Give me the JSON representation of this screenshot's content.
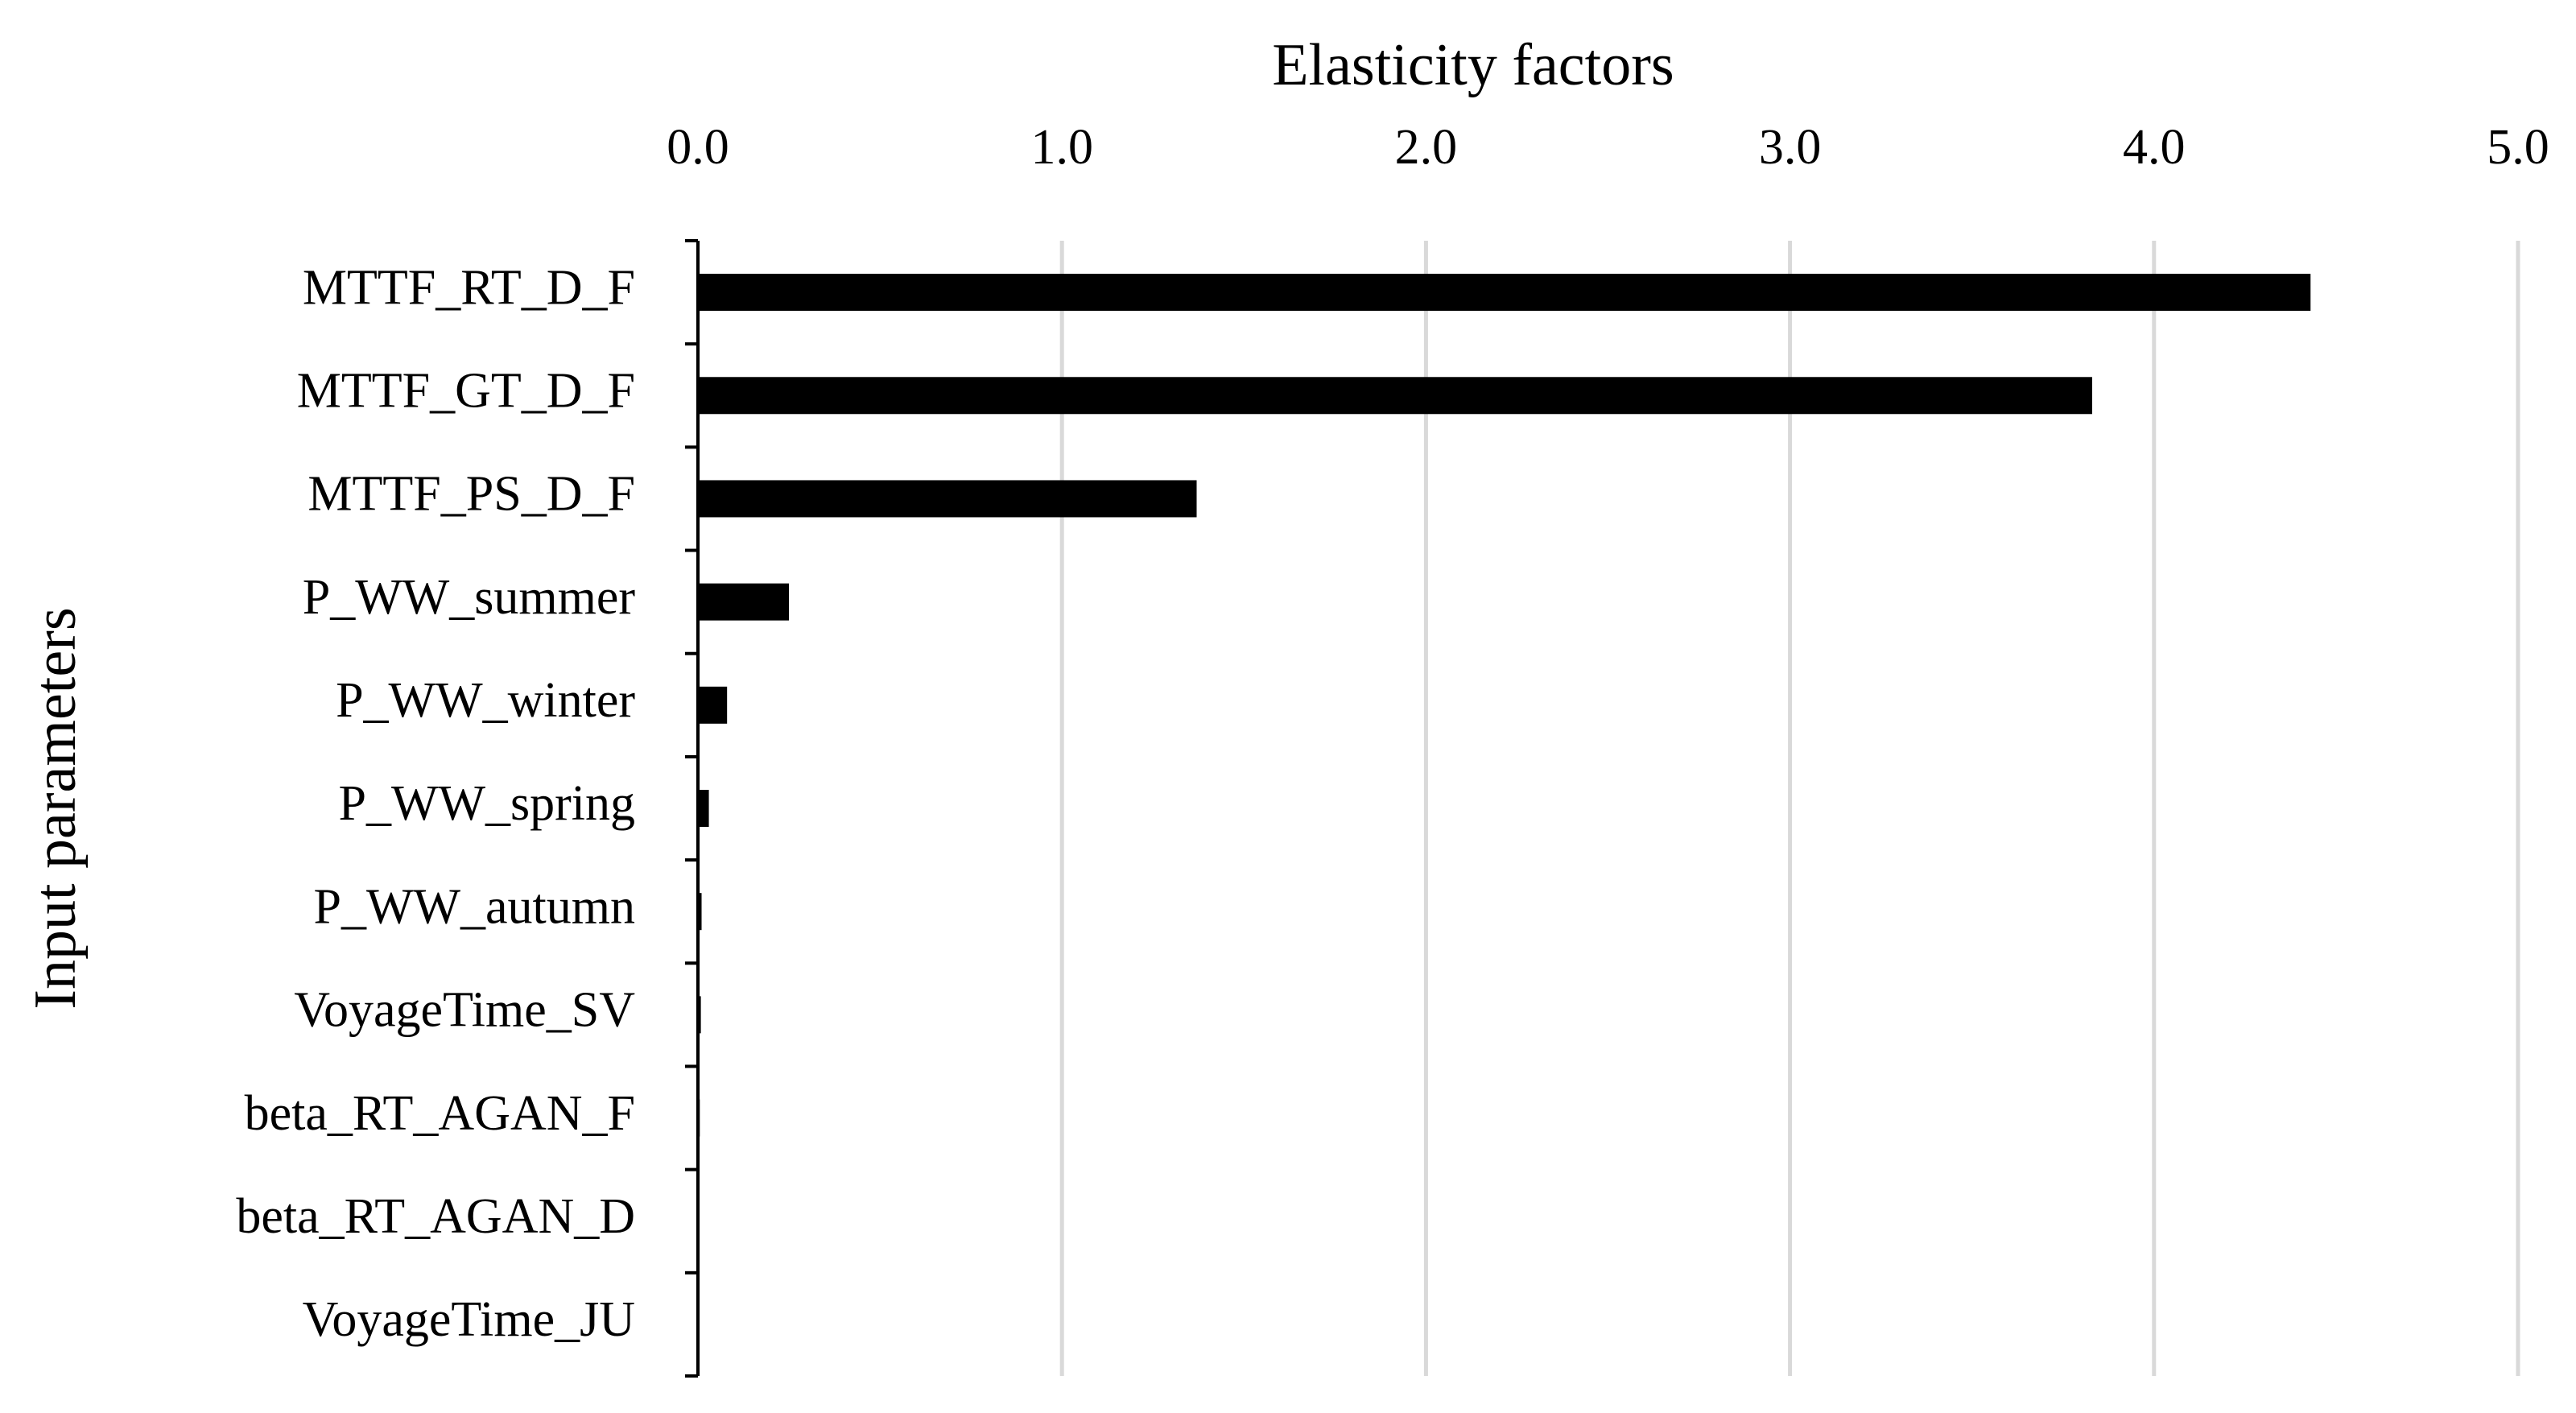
{
  "chart_data": {
    "type": "barh",
    "x_label": "Elasticity factors",
    "y_label": "Input parameters",
    "categories": [
      "MTTF_RT_D_F",
      "MTTF_GT_D_F",
      "MTTF_PS_D_F",
      "P_WW_summer",
      "P_WW_winter",
      "P_WW_spring",
      "P_WW_autumn",
      "VoyageTime_SV",
      "beta_RT_AGAN_F",
      "beta_RT_AGAN_D",
      "VoyageTime_JU"
    ],
    "values": [
      4.43,
      3.83,
      1.37,
      0.25,
      0.08,
      0.03,
      0.01,
      0.008,
      0.005,
      0.002,
      0.001
    ],
    "color": "#000000",
    "xlim": [
      0,
      5
    ],
    "xticks": [
      {
        "value": 0,
        "label": "0.0"
      },
      {
        "value": 1,
        "label": "1.0"
      },
      {
        "value": 2,
        "label": "2.0"
      },
      {
        "value": 3,
        "label": "3.0"
      },
      {
        "value": 4,
        "label": "4.0"
      },
      {
        "value": 5,
        "label": "5.0"
      }
    ],
    "grid": true
  }
}
